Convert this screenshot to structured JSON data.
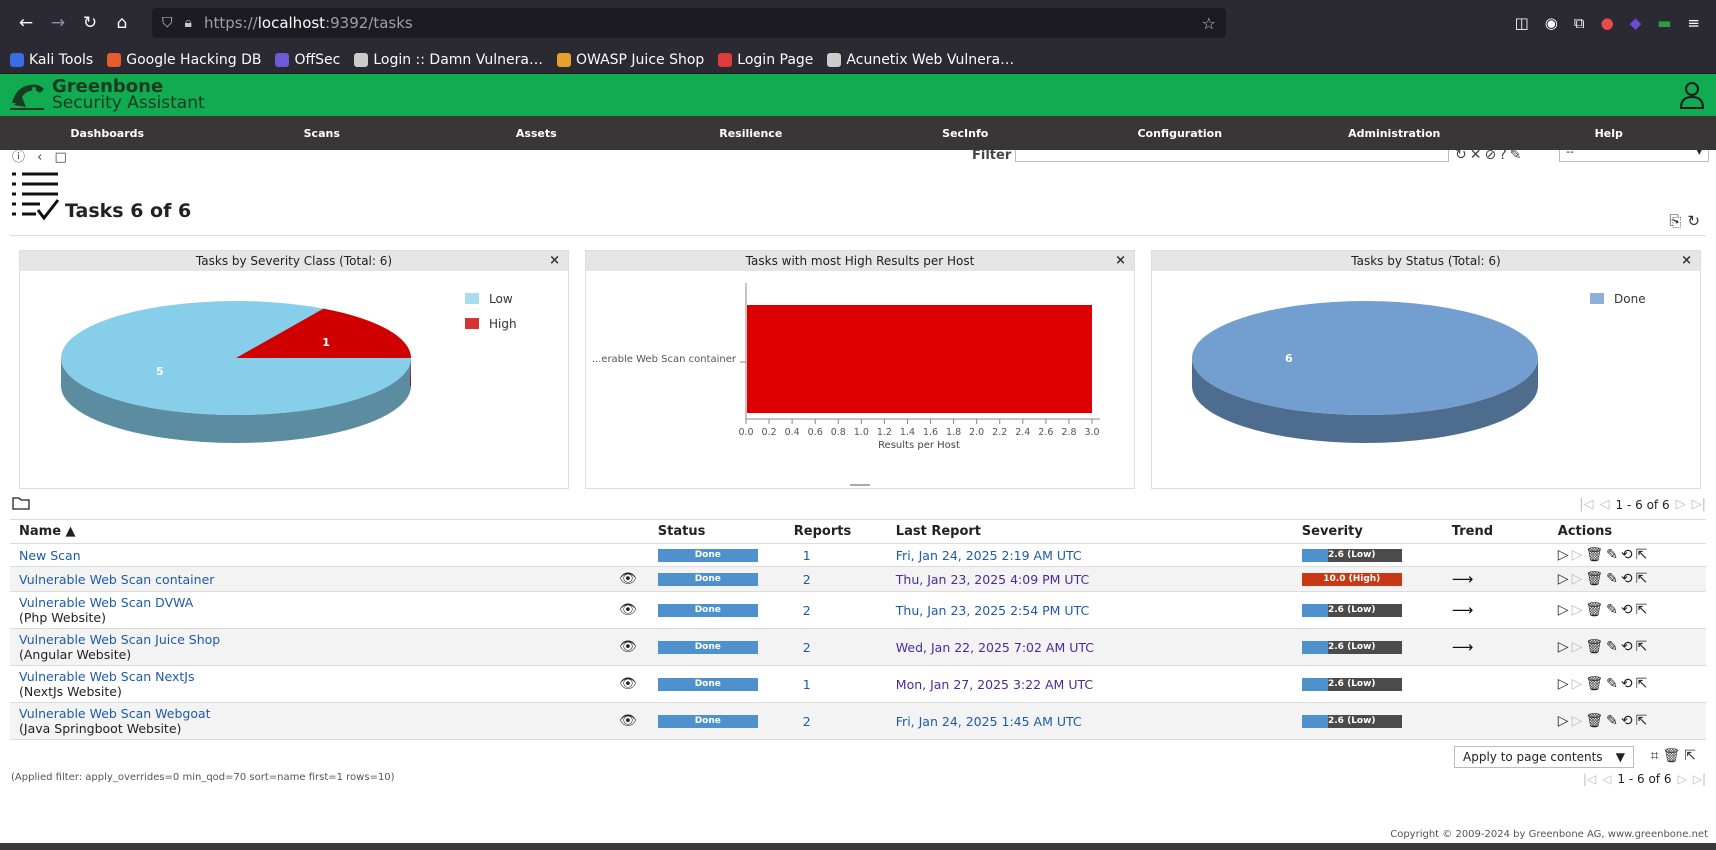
{
  "browser": {
    "url_prefix": "https://",
    "url_host": "localhost",
    "url_rest": ":9392/tasks",
    "bookmarks": [
      {
        "label": "Kali Tools",
        "color": "#3b6ce6"
      },
      {
        "label": "Google Hacking DB",
        "color": "#e65c2c"
      },
      {
        "label": "OffSec",
        "color": "#6b5bd6"
      },
      {
        "label": "Login :: Damn Vulnera…",
        "color": "#cccccc"
      },
      {
        "label": "OWASP Juice Shop",
        "color": "#e6a02c"
      },
      {
        "label": "Login Page",
        "color": "#e03b3b"
      },
      {
        "label": "Acunetix Web Vulnera…",
        "color": "#cccccc"
      }
    ]
  },
  "app": {
    "logo_line1": "Greenbone",
    "logo_line2": "Security Assistant",
    "menu": [
      "Dashboards",
      "Scans",
      "Assets",
      "Resilience",
      "SecInfo",
      "Configuration",
      "Administration",
      "Help"
    ]
  },
  "toolbar": {
    "filter_label": "Filter",
    "filter_value": "",
    "filter_select": "--"
  },
  "page": {
    "title": "Tasks 6 of 6"
  },
  "charts": [
    {
      "title": "Tasks by Severity Class (Total: 6)",
      "type": "pie",
      "labels": [
        "Low",
        "High"
      ],
      "values": [
        5,
        1
      ],
      "colors": [
        "#87ceeb",
        "#d10000"
      ],
      "legend_colors": [
        "#a8dcef",
        "#d33333"
      ]
    },
    {
      "title": "Tasks with most High Results per Host",
      "type": "bar",
      "categories": [
        "...erable Web Scan container"
      ],
      "values": [
        3.0
      ],
      "xlabel": "Results per Host",
      "xlim": [
        0,
        3.0
      ],
      "ticks": [
        "0.0",
        "0.2",
        "0.4",
        "0.6",
        "0.8",
        "1.0",
        "1.2",
        "1.4",
        "1.6",
        "1.8",
        "2.0",
        "2.2",
        "2.4",
        "2.6",
        "2.8",
        "3.0"
      ],
      "color": "#dc0000"
    },
    {
      "title": "Tasks by Status (Total: 6)",
      "type": "pie",
      "labels": [
        "Done"
      ],
      "values": [
        6
      ],
      "colors": [
        "#729fcf"
      ],
      "legend_colors": [
        "#8bb0d9"
      ]
    }
  ],
  "chart_data": [
    {
      "type": "pie",
      "title": "Tasks by Severity Class (Total: 6)",
      "labels": [
        "Low",
        "High"
      ],
      "values": [
        5,
        1
      ]
    },
    {
      "type": "bar",
      "title": "Tasks with most High Results per Host",
      "categories": [
        "...erable Web Scan container"
      ],
      "values": [
        3.0
      ],
      "xlabel": "Results per Host",
      "ylabel": "",
      "xlim": [
        0,
        3.0
      ]
    },
    {
      "type": "pie",
      "title": "Tasks by Status (Total: 6)",
      "labels": [
        "Done"
      ],
      "values": [
        6
      ]
    }
  ],
  "table": {
    "pager": "1 - 6 of 6",
    "headers": {
      "name": "Name ▲",
      "status": "Status",
      "reports": "Reports",
      "last_report": "Last Report",
      "severity": "Severity",
      "trend": "Trend",
      "actions": "Actions"
    },
    "rows": [
      {
        "name": "New Scan",
        "comment": "",
        "eye": false,
        "status": "Done",
        "reports": "1",
        "last_report": "Fri, Jan 24, 2025 2:19 AM UTC",
        "last_visited": false,
        "severity": "2.6 (Low)",
        "severity_value": 2.6,
        "severity_class": "low",
        "trend": ""
      },
      {
        "name": "Vulnerable Web Scan container",
        "comment": "",
        "eye": true,
        "status": "Done",
        "reports": "2",
        "last_report": "Thu, Jan 23, 2025 4:09 PM UTC",
        "last_visited": true,
        "severity": "10.0 (High)",
        "severity_value": 10.0,
        "severity_class": "high",
        "trend": "⟶"
      },
      {
        "name": "Vulnerable Web Scan DVWA",
        "comment": "(Php Website)",
        "eye": true,
        "status": "Done",
        "reports": "2",
        "last_report": "Thu, Jan 23, 2025 2:54 PM UTC",
        "last_visited": false,
        "severity": "2.6 (Low)",
        "severity_value": 2.6,
        "severity_class": "low",
        "trend": "⟶"
      },
      {
        "name": "Vulnerable Web Scan Juice Shop",
        "comment": "(Angular Website)",
        "eye": true,
        "status": "Done",
        "reports": "2",
        "last_report": "Wed, Jan 22, 2025 7:02 AM UTC",
        "last_visited": true,
        "severity": "2.6 (Low)",
        "severity_value": 2.6,
        "severity_class": "low",
        "trend": "⟶"
      },
      {
        "name": "Vulnerable Web Scan NextJs",
        "comment": "(NextJs Website)",
        "eye": true,
        "status": "Done",
        "reports": "1",
        "last_report": "Mon, Jan 27, 2025 3:22 AM UTC",
        "last_visited": true,
        "severity": "2.6 (Low)",
        "severity_value": 2.6,
        "severity_class": "low",
        "trend": ""
      },
      {
        "name": "Vulnerable Web Scan Webgoat",
        "comment": "(Java Springboot Website)",
        "eye": true,
        "status": "Done",
        "reports": "2",
        "last_report": "Fri, Jan 24, 2025 1:45 AM UTC",
        "last_visited": false,
        "severity": "2.6 (Low)",
        "severity_value": 2.6,
        "severity_class": "low",
        "trend": ""
      }
    ]
  },
  "bottom": {
    "apply_select": "Apply to page contents",
    "applied_filter": "(Applied filter: apply_overrides=0 min_qod=70 sort=name first=1 rows=10)",
    "pager": "1 - 6 of 6",
    "copyright": "Copyright © 2009-2024 by Greenbone AG, www.greenbone.net"
  }
}
